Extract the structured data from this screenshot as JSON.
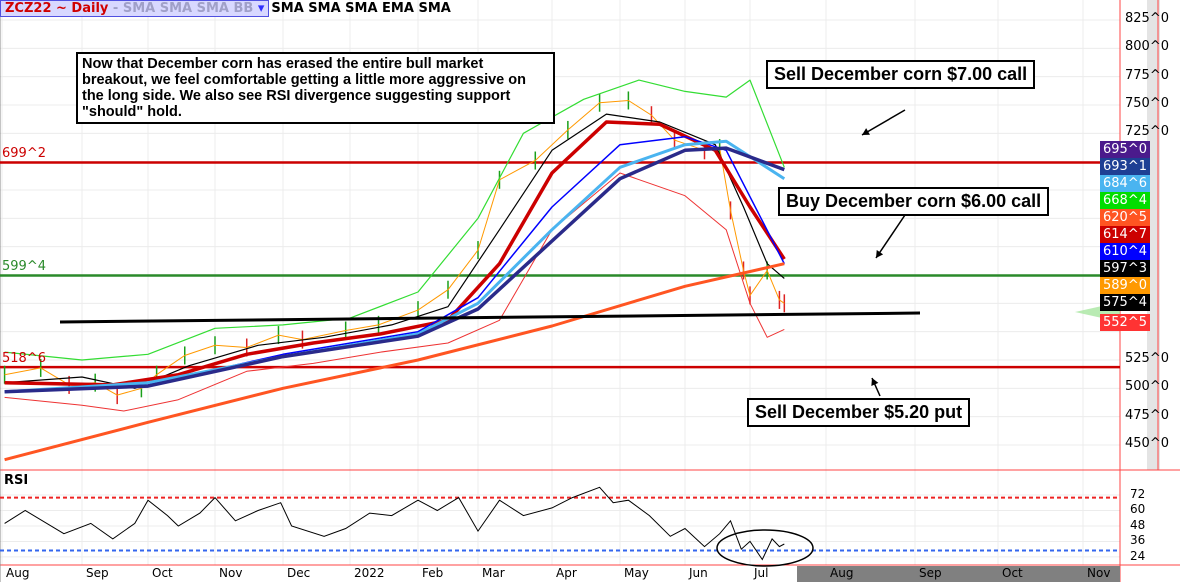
{
  "header": {
    "symbol": "ZCZ22 ~ Daily",
    "studies_dim": "-  SMA SMA SMA BB",
    "studies": "SMA SMA SMA EMA SMA"
  },
  "annotations": {
    "main_note": "Now that December corn has erased the entire bull market breakout, we feel comfortable getting a little more aggressive on the long side. We also see RSI divergence suggesting support \"should\" hold.",
    "sell_call": "Sell December corn $7.00 call",
    "buy_call": "Buy December corn $6.00 call",
    "sell_put": "Sell December $5.20 put"
  },
  "levels": [
    {
      "label": "699^2",
      "value": 699.25,
      "color": "#cc0000"
    },
    {
      "label": "599^4",
      "value": 599.5,
      "color": "#2a8a2a"
    },
    {
      "label": "518^6",
      "value": 518.75,
      "color": "#cc0000"
    }
  ],
  "right_tags": [
    {
      "label": "695^0",
      "color": "#4b1a8c"
    },
    {
      "label": "693^1",
      "color": "#1e3f94"
    },
    {
      "label": "684^6",
      "color": "#4ab4f0"
    },
    {
      "label": "668^4",
      "color": "#00dd00"
    },
    {
      "label": "620^5",
      "color": "#ff5522"
    },
    {
      "label": "614^7",
      "color": "#cc0000"
    },
    {
      "label": "610^4",
      "color": "#0000ff"
    },
    {
      "label": "597^3",
      "color": "#000000"
    },
    {
      "label": "589^0",
      "color": "#ff9900"
    },
    {
      "label": "575^4",
      "color": "#000000"
    },
    {
      "label": "552^5",
      "color": "#ff3333"
    }
  ],
  "rsi_label": "RSI",
  "chart_data": [
    {
      "type": "line",
      "title": "ZCZ22 ~ Daily",
      "ylim": [
        437,
        830
      ],
      "y_ticks": [
        "825^0",
        "800^0",
        "775^0",
        "750^0",
        "725^0",
        "525^0",
        "500^0",
        "475^0",
        "450^0"
      ],
      "x_ticks": [
        "Aug",
        "Sep",
        "Oct",
        "Nov",
        "Dec",
        "2022",
        "Feb",
        "Mar",
        "Apr",
        "May",
        "Jun",
        "Jul",
        "Aug",
        "Sep",
        "Oct",
        "Nov"
      ],
      "series": [
        {
          "key": "price",
          "color": "#1a9a1a",
          "points": [
            [
              "2021-08-02",
              512
            ],
            [
              "2021-08-16",
              518
            ],
            [
              "2021-08-27",
              503
            ],
            [
              "2021-09-07",
              505
            ],
            [
              "2021-09-17",
              494
            ],
            [
              "2021-09-28",
              500
            ],
            [
              "2021-10-05",
              512
            ],
            [
              "2021-10-18",
              529
            ],
            [
              "2021-11-01",
              538
            ],
            [
              "2021-11-15",
              536
            ],
            [
              "2021-11-29",
              547
            ],
            [
              "2021-12-10",
              543
            ],
            [
              "2021-12-30",
              551
            ],
            [
              "2022-01-14",
              556
            ],
            [
              "2022-02-01",
              569
            ],
            [
              "2022-02-15",
              587
            ],
            [
              "2022-03-01",
              622
            ],
            [
              "2022-03-10",
              684
            ],
            [
              "2022-03-25",
              701
            ],
            [
              "2022-04-08",
              728
            ],
            [
              "2022-04-22",
              752
            ],
            [
              "2022-05-05",
              754
            ],
            [
              "2022-05-16",
              741
            ],
            [
              "2022-05-27",
              719
            ],
            [
              "2022-06-10",
              710
            ],
            [
              "2022-06-17",
              712
            ],
            [
              "2022-06-22",
              657
            ],
            [
              "2022-06-28",
              604
            ],
            [
              "2022-07-01",
              582
            ],
            [
              "2022-07-08",
              604
            ],
            [
              "2022-07-13",
              578
            ],
            [
              "2022-07-15",
              575
            ]
          ]
        },
        {
          "key": "bb_upper",
          "color": "#33dd33",
          "points": [
            [
              "2021-08-02",
              532
            ],
            [
              "2021-09-01",
              525
            ],
            [
              "2021-10-01",
              530
            ],
            [
              "2021-11-01",
              553
            ],
            [
              "2021-12-01",
              556
            ],
            [
              "2022-01-01",
              562
            ],
            [
              "2022-02-01",
              585
            ],
            [
              "2022-03-01",
              650
            ],
            [
              "2022-03-20",
              725
            ],
            [
              "2022-04-15",
              755
            ],
            [
              "2022-05-10",
              772
            ],
            [
              "2022-06-01",
              762
            ],
            [
              "2022-06-20",
              757
            ],
            [
              "2022-07-01",
              772
            ],
            [
              "2022-07-15",
              695
            ]
          ]
        },
        {
          "key": "bb_lower",
          "color": "#ee3333",
          "points": [
            [
              "2021-08-02",
              492
            ],
            [
              "2021-09-01",
              485
            ],
            [
              "2021-09-20",
              480
            ],
            [
              "2021-10-15",
              490
            ],
            [
              "2021-11-15",
              515
            ],
            [
              "2021-12-15",
              522
            ],
            [
              "2022-01-15",
              532
            ],
            [
              "2022-02-15",
              540
            ],
            [
              "2022-03-10",
              560
            ],
            [
              "2022-04-01",
              640
            ],
            [
              "2022-05-01",
              690
            ],
            [
              "2022-06-01",
              670
            ],
            [
              "2022-06-20",
              640
            ],
            [
              "2022-07-01",
              575
            ],
            [
              "2022-07-08",
              545
            ],
            [
              "2022-07-15",
              552
            ]
          ]
        },
        {
          "key": "sma_black",
          "color": "#000000",
          "points": [
            [
              "2021-08-02",
              505
            ],
            [
              "2021-09-01",
              510
            ],
            [
              "2021-09-25",
              500
            ],
            [
              "2021-10-20",
              520
            ],
            [
              "2021-11-20",
              538
            ],
            [
              "2021-12-20",
              545
            ],
            [
              "2022-01-20",
              556
            ],
            [
              "2022-02-15",
              572
            ],
            [
              "2022-03-10",
              640
            ],
            [
              "2022-04-01",
              710
            ],
            [
              "2022-04-25",
              742
            ],
            [
              "2022-05-20",
              735
            ],
            [
              "2022-06-15",
              715
            ],
            [
              "2022-06-28",
              660
            ],
            [
              "2022-07-08",
              610
            ],
            [
              "2022-07-15",
              597
            ]
          ]
        },
        {
          "key": "sma_red",
          "color": "#cc0000",
          "points": [
            [
              "2021-08-02",
              505
            ],
            [
              "2021-09-15",
              503
            ],
            [
              "2021-10-15",
              512
            ],
            [
              "2021-11-15",
              530
            ],
            [
              "2021-12-15",
              540
            ],
            [
              "2022-01-15",
              548
            ],
            [
              "2022-02-15",
              560
            ],
            [
              "2022-03-10",
              610
            ],
            [
              "2022-04-01",
              690
            ],
            [
              "2022-04-25",
              735
            ],
            [
              "2022-05-20",
              733
            ],
            [
              "2022-06-15",
              710
            ],
            [
              "2022-07-01",
              660
            ],
            [
              "2022-07-15",
              614
            ]
          ]
        },
        {
          "key": "sma_blue",
          "color": "#0000ff",
          "points": [
            [
              "2021-08-02",
              497
            ],
            [
              "2021-10-01",
              503
            ],
            [
              "2021-12-01",
              530
            ],
            [
              "2022-02-01",
              550
            ],
            [
              "2022-03-01",
              580
            ],
            [
              "2022-04-01",
              660
            ],
            [
              "2022-05-01",
              715
            ],
            [
              "2022-06-01",
              722
            ],
            [
              "2022-06-20",
              710
            ],
            [
              "2022-07-15",
              610
            ]
          ]
        },
        {
          "key": "ema_lightblue",
          "color": "#4ab4f0",
          "points": [
            [
              "2021-08-02",
              497
            ],
            [
              "2021-10-01",
              505
            ],
            [
              "2021-12-01",
              528
            ],
            [
              "2022-02-01",
              548
            ],
            [
              "2022-03-01",
              575
            ],
            [
              "2022-04-01",
              640
            ],
            [
              "2022-05-01",
              695
            ],
            [
              "2022-06-01",
              715
            ],
            [
              "2022-06-20",
              718
            ],
            [
              "2022-07-15",
              685
            ]
          ]
        },
        {
          "key": "sma_navy",
          "color": "#2a2a8a",
          "points": [
            [
              "2021-08-02",
              497
            ],
            [
              "2021-10-01",
              502
            ],
            [
              "2021-12-01",
              528
            ],
            [
              "2022-02-01",
              546
            ],
            [
              "2022-03-01",
              570
            ],
            [
              "2022-04-01",
              630
            ],
            [
              "2022-05-01",
              685
            ],
            [
              "2022-06-01",
              710
            ],
            [
              "2022-06-20",
              712
            ],
            [
              "2022-07-15",
              693
            ]
          ]
        },
        {
          "key": "sma_200",
          "color": "#ff5522",
          "points": [
            [
              "2021-08-02",
              437
            ],
            [
              "2021-10-01",
              470
            ],
            [
              "2021-12-01",
              500
            ],
            [
              "2022-02-01",
              525
            ],
            [
              "2022-04-01",
              555
            ],
            [
              "2022-06-01",
              590
            ],
            [
              "2022-07-15",
              610
            ]
          ]
        }
      ]
    },
    {
      "type": "line",
      "title": "RSI",
      "ylim": [
        16,
        82
      ],
      "y_ticks": [
        72,
        60,
        48,
        36,
        24
      ],
      "overbought": 70,
      "oversold": 29,
      "points": [
        [
          "2021-08-02",
          50
        ],
        [
          "2021-08-10",
          60
        ],
        [
          "2021-08-25",
          42
        ],
        [
          "2021-09-05",
          50
        ],
        [
          "2021-09-15",
          38
        ],
        [
          "2021-09-25",
          50
        ],
        [
          "2021-10-01",
          68
        ],
        [
          "2021-10-10",
          56
        ],
        [
          "2021-10-15",
          48
        ],
        [
          "2021-10-25",
          58
        ],
        [
          "2021-11-01",
          70
        ],
        [
          "2021-11-10",
          52
        ],
        [
          "2021-11-20",
          60
        ],
        [
          "2021-11-30",
          66
        ],
        [
          "2021-12-05",
          48
        ],
        [
          "2021-12-20",
          40
        ],
        [
          "2021-12-30",
          46
        ],
        [
          "2022-01-10",
          58
        ],
        [
          "2022-01-20",
          56
        ],
        [
          "2022-02-01",
          68
        ],
        [
          "2022-02-10",
          60
        ],
        [
          "2022-02-20",
          70
        ],
        [
          "2022-03-01",
          44
        ],
        [
          "2022-03-10",
          68
        ],
        [
          "2022-03-20",
          56
        ],
        [
          "2022-04-01",
          62
        ],
        [
          "2022-04-10",
          70
        ],
        [
          "2022-04-22",
          78
        ],
        [
          "2022-04-28",
          66
        ],
        [
          "2022-05-05",
          68
        ],
        [
          "2022-05-15",
          56
        ],
        [
          "2022-05-25",
          40
        ],
        [
          "2022-06-01",
          46
        ],
        [
          "2022-06-10",
          32
        ],
        [
          "2022-06-17",
          42
        ],
        [
          "2022-06-22",
          52
        ],
        [
          "2022-06-27",
          30
        ],
        [
          "2022-07-01",
          36
        ],
        [
          "2022-07-06",
          22
        ],
        [
          "2022-07-10",
          38
        ],
        [
          "2022-07-13",
          32
        ],
        [
          "2022-07-15",
          34
        ]
      ]
    }
  ]
}
